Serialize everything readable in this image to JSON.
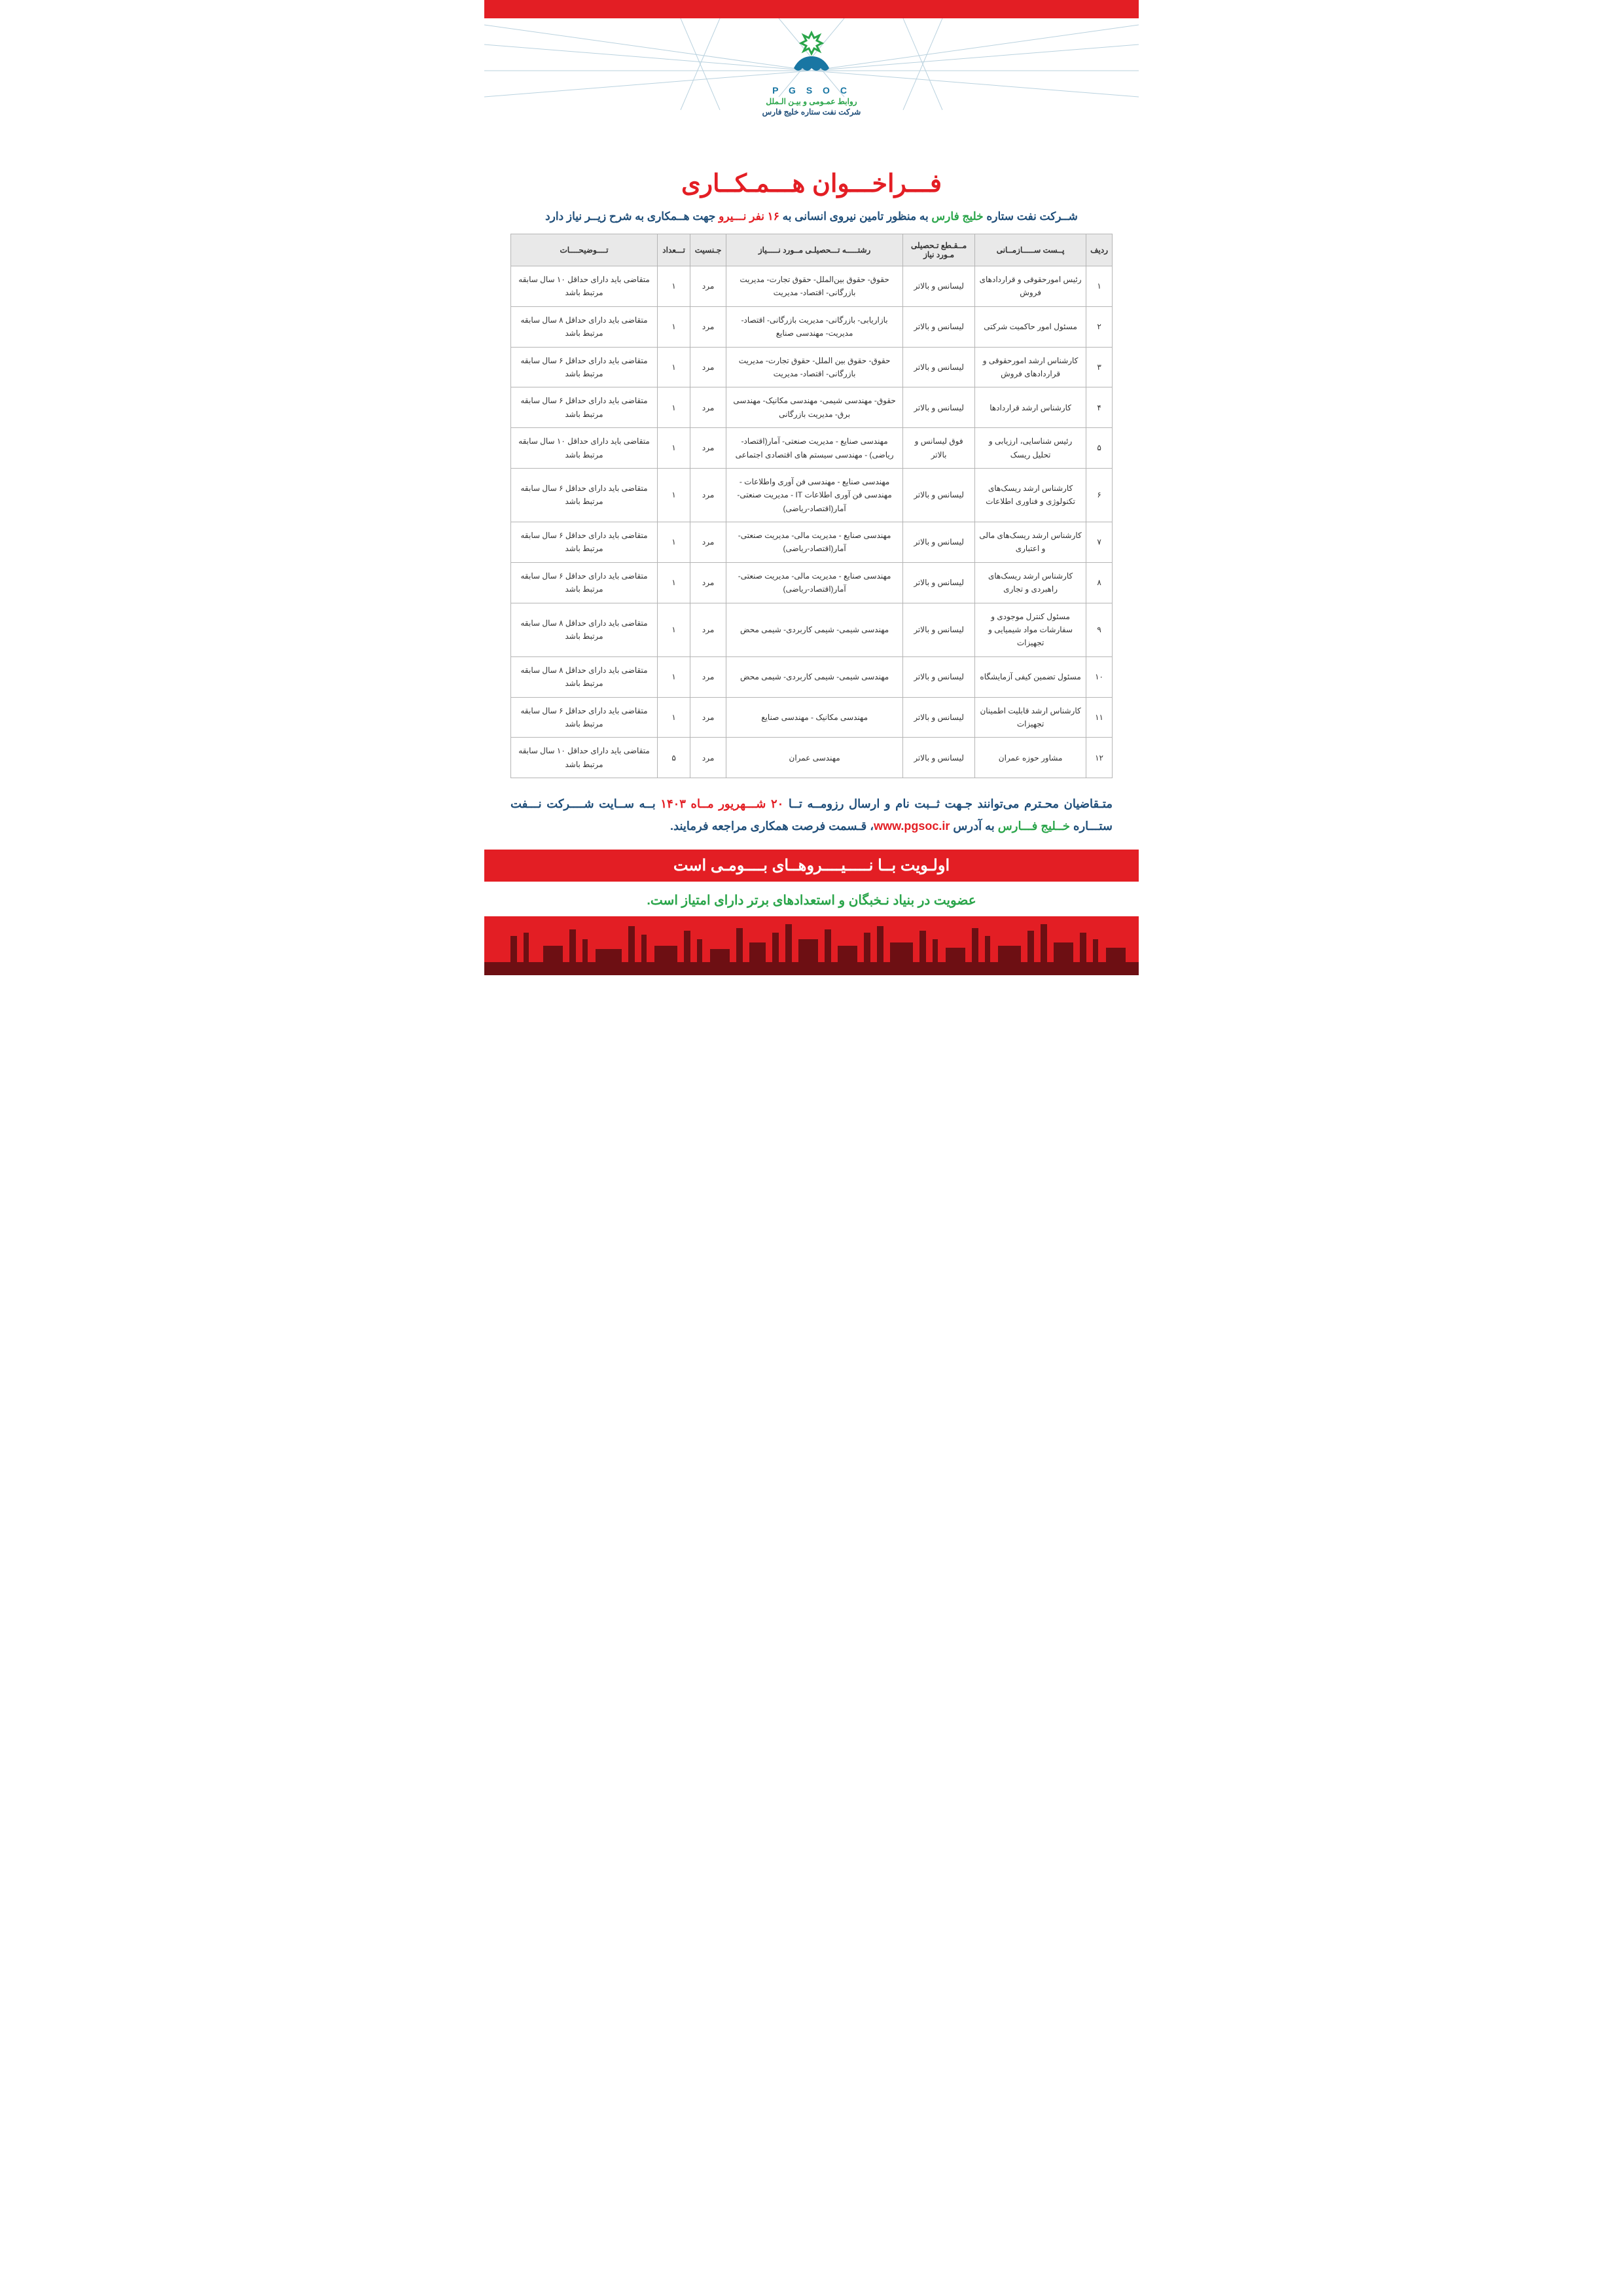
{
  "colors": {
    "brand_red": "#e31e24",
    "brand_green": "#2aa54a",
    "brand_blue": "#1f4e79",
    "light_blue": "#1976a3",
    "table_header_bg": "#e9e9e9",
    "table_border": "#b5b5b5",
    "silhouette": "#6d0f13"
  },
  "logo": {
    "acronym": "P G S O C",
    "pr_line": "روابط عمـومی و بیـن الـملل",
    "company": "شرکت نفت ستاره خلیج فارس"
  },
  "title": "فـــراخـــوان هـــمـکــاری",
  "subhead": {
    "p1": "شــرکت نفت ستاره ",
    "green": "خلیج فارس",
    "p2": " به منظور تامین نیروی انسانی  به ",
    "red": "۱۶ نفر نـــیرو",
    "p3": " جهت هــمکاری به شرح زیــر نیاز دارد"
  },
  "table": {
    "headers": {
      "row": "ردیف",
      "position": "پــست ســـــازمــانی",
      "edu_level": "مــقـطع تـحصیلی مـورد نیاز",
      "majors": "رشتـــــه تـــحصیلـی مــورد نـــــیاز",
      "gender": "جـنسیت",
      "count": "تـــعداد",
      "desc": "تــــوضیحــــات"
    },
    "rows": [
      {
        "n": "۱",
        "pos": "رئیس امورحقوقی و قراردادهای فروش",
        "edu": "لیسانس و بالاتر",
        "maj": "حقوق- حقوق بین‌الملل- حقوق تجارت- مدیریت بازرگانی- اقتصاد- مدیریت",
        "g": "مرد",
        "c": "۱",
        "d": "متقاضی باید دارای حداقل ۱۰ سال سابقه مرتبط باشد"
      },
      {
        "n": "۲",
        "pos": "مسئول امور حاکمیت شرکتی",
        "edu": "لیسانس و بالاتر",
        "maj": "بازاریابی- بازرگانی- مدیریت بازرگانی- اقتصاد- مدیریت- مهندسی صنایع",
        "g": "مرد",
        "c": "۱",
        "d": "متقاضی باید دارای حداقل ۸ سال سابقه مرتبط باشد"
      },
      {
        "n": "۳",
        "pos": "کارشناس ارشد امورحقوقی و قراردادهای فروش",
        "edu": "لیسانس و بالاتر",
        "maj": "حقوق- حقوق بین الملل- حقوق تجارت- مدیریت بازرگانی- اقتصاد- مدیریت",
        "g": "مرد",
        "c": "۱",
        "d": "متقاضی باید دارای حداقل ۶ سال سابقه مرتبط باشد"
      },
      {
        "n": "۴",
        "pos": "کارشناس ارشد قراردادها",
        "edu": "لیسانس و بالاتر",
        "maj": "حقوق- مهندسی شیمی-  مهندسی مکانیک-  مهندسی برق- مدیریت بازرگانی",
        "g": "مرد",
        "c": "۱",
        "d": "متقاضی باید دارای حداقل ۶ سال سابقه مرتبط باشد"
      },
      {
        "n": "۵",
        "pos": "رئیس شناسایی، ارزیابی و تحلیل ریسک",
        "edu": "فوق لیسانس و بالاتر",
        "maj": "مهندسی صنایع - مدیریت صنعتی- آمار(اقتصاد-ریاضی) - مهندسی سیستم های اقتصادی اجتماعی",
        "g": "مرد",
        "c": "۱",
        "d": "متقاضی باید دارای حداقل ۱۰ سال سابقه مرتبط باشد"
      },
      {
        "n": "۶",
        "pos": "کارشناس ارشد ریسک‌های تکنولوژی و فناوری اطلاعات",
        "edu": "لیسانس و بالاتر",
        "maj": "مهندسی صنایع - مهندسی فن آوری واطلاعات - مهندسی فن آوری اطلاعات IT - مدیریت صنعتی- آمار(اقتصاد-ریاضی)",
        "g": "مرد",
        "c": "۱",
        "d": "متقاضی باید دارای حداقل ۶ سال سابقه مرتبط باشد"
      },
      {
        "n": "۷",
        "pos": "کارشناس ارشد ریسک‌های مالی و اعتباری",
        "edu": "لیسانس و بالاتر",
        "maj": "مهندسی صنایع - مدیریت مالی- مدیریت صنعتی- آمار(اقتصاد-ریاضی)",
        "g": "مرد",
        "c": "۱",
        "d": "متقاضی باید دارای حداقل ۶ سال سابقه مرتبط باشد"
      },
      {
        "n": "۸",
        "pos": "کارشناس ارشد ریسک‌های راهبردی و تجاری",
        "edu": "لیسانس و بالاتر",
        "maj": "مهندسی صنایع - مدیریت مالی- مدیریت صنعتی- آمار(اقتصاد-ریاضی)",
        "g": "مرد",
        "c": "۱",
        "d": "متقاضی باید دارای حداقل ۶ سال سابقه مرتبط باشد"
      },
      {
        "n": "۹",
        "pos": "مسئول کنترل موجودی و سفارشات مواد شیمیایی و تجهیزات",
        "edu": "لیسانس و بالاتر",
        "maj": "مهندسی شیمی- شیمی کاربردی- شیمی محض",
        "g": "مرد",
        "c": "۱",
        "d": "متقاضی باید دارای حداقل ۸ سال سابقه مرتبط باشد"
      },
      {
        "n": "۱۰",
        "pos": "مسئول تضمین کیفی آزمایشگاه",
        "edu": "لیسانس و بالاتر",
        "maj": "مهندسی شیمی- شیمی کاربردی- شیمی محض",
        "g": "مرد",
        "c": "۱",
        "d": "متقاضی باید دارای حداقل ۸ سال سابقه مرتبط باشد"
      },
      {
        "n": "۱۱",
        "pos": "کارشناس ارشد قابلیت اطمینان تجهیزات",
        "edu": "لیسانس و بالاتر",
        "maj": "مهندسی مکانیک - مهندسی صنایع",
        "g": "مرد",
        "c": "۱",
        "d": "متقاضی باید دارای حداقل ۶ سال سابقه مرتبط باشد"
      },
      {
        "n": "۱۲",
        "pos": "مشاور حوزه عمران",
        "edu": "لیسانس و بالاتر",
        "maj": "مهندسی عمران",
        "g": "مرد",
        "c": "۵",
        "d": "متقاضی باید دارای حداقل ۱۰ سال سابقه مرتبط باشد"
      }
    ]
  },
  "below": {
    "p1": "متـقاضیان محـترم می‌توانند جـهت ثــبت نام و ارسال رزومــه تــا ",
    "red": " ۲۰  شـــهریور مــاه  ۱۴۰۳",
    "p2": " بــه ســایت شــــرکت نـــفت ستـــاره ",
    "green": "خــلیج فـــارس",
    "p3": " به آدرس ",
    "url": "www.pgsoc.ir",
    "p4": "، قـسمت فرصت همکاری مراجعه فرمایند."
  },
  "priority": "اولـویت بــا نـــــیــــروهــای بــــومـی است",
  "elite": "عضویت در بنیاد نـخبگان و استعدادهای برتر دارای امتیاز است."
}
